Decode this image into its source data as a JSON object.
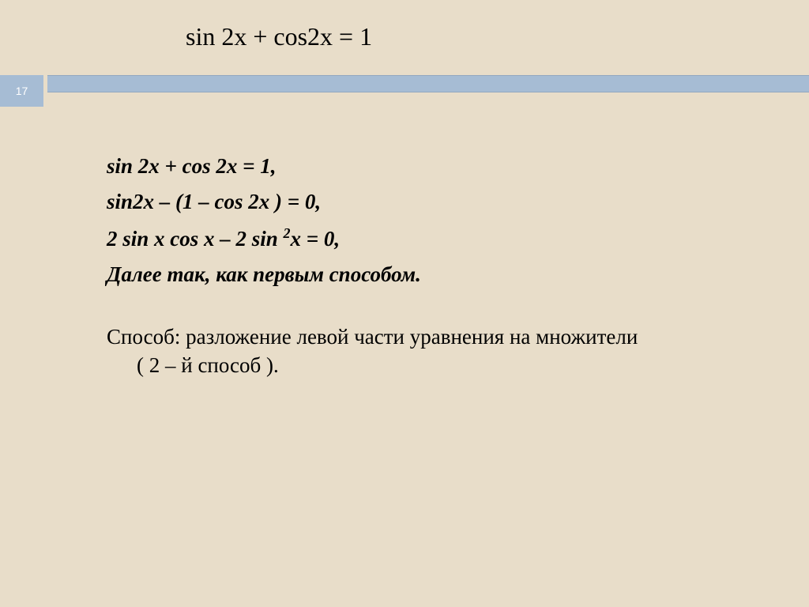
{
  "slide": {
    "number": "17",
    "title": "sin 2x + cos2x = 1"
  },
  "content": {
    "eq1": "sin 2x + cos 2x = 1,",
    "eq2": "sin2x – (1 – cos 2x ) = 0,",
    "eq3_part1": "2 sin x cos x – 2 sin ",
    "eq3_sup": "2",
    "eq3_part2": "x = 0,",
    "conclusion": "Далее так, как  первым способом.",
    "method_line1": "Способ: разложение левой части уравнения на множители",
    "method_line2": "( 2 – й способ )."
  },
  "colors": {
    "background": "#e8ddc9",
    "band": "#a6bcd4",
    "text": "#000000"
  }
}
